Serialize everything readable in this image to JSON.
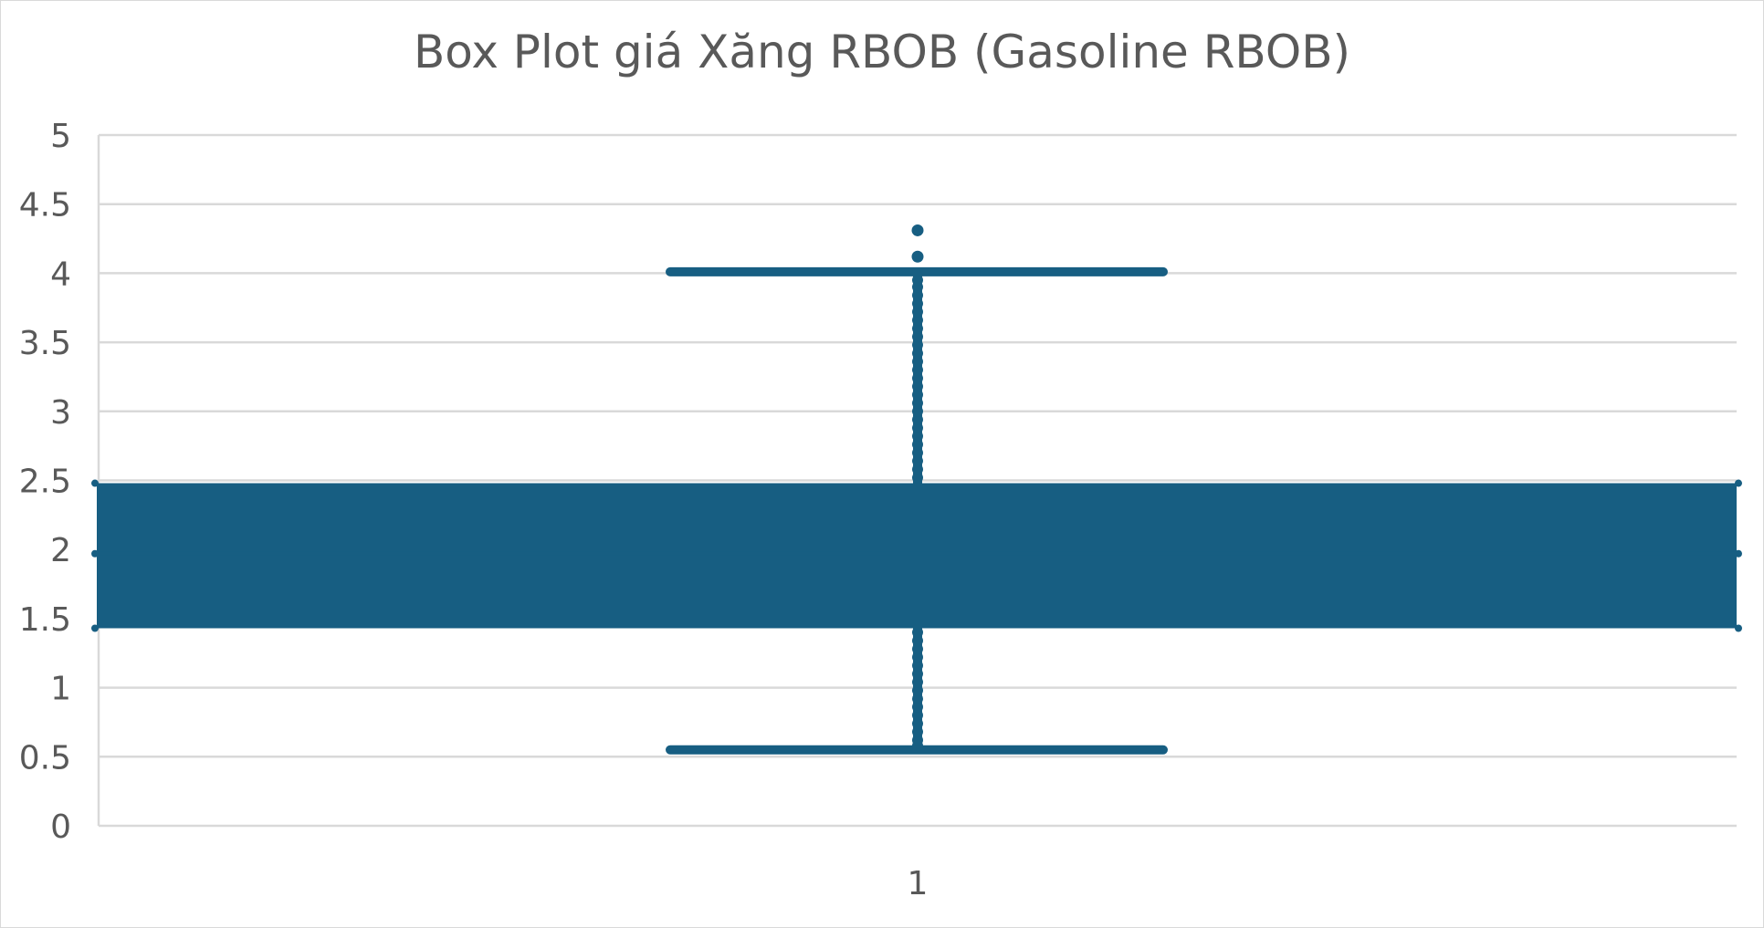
{
  "chart_data": {
    "type": "box",
    "title": "Box Plot giá Xăng RBOB (Gasoline RBOB)",
    "categories": [
      "1"
    ],
    "ylim": [
      0,
      5
    ],
    "yticks": [
      "0",
      "0.5",
      "1",
      "1.5",
      "2",
      "2.5",
      "3",
      "3.5",
      "4",
      "4.5",
      "5"
    ],
    "grid": true,
    "box": {
      "q1": 1.43,
      "q3": 2.48,
      "median": 1.97,
      "mean": 1.97
    },
    "whisker_low": 0.55,
    "whisker_high": 4.01,
    "outliers": [
      4.12,
      4.31
    ],
    "inner_points": [
      0.58,
      0.62,
      0.68,
      0.74,
      0.8,
      0.86,
      0.92,
      0.98,
      1.04,
      1.1,
      1.16,
      1.22,
      1.28,
      1.34,
      1.4,
      2.52,
      2.58,
      2.64,
      2.7,
      2.76,
      2.82,
      2.88,
      2.94,
      3.0,
      3.06,
      3.12,
      3.18,
      3.24,
      3.3,
      3.36,
      3.42,
      3.48,
      3.54,
      3.6,
      3.66,
      3.72,
      3.78,
      3.84,
      3.9,
      3.95
    ],
    "colors": {
      "box": "#175e82",
      "grid": "#d9d9d9",
      "text": "#595959"
    }
  }
}
